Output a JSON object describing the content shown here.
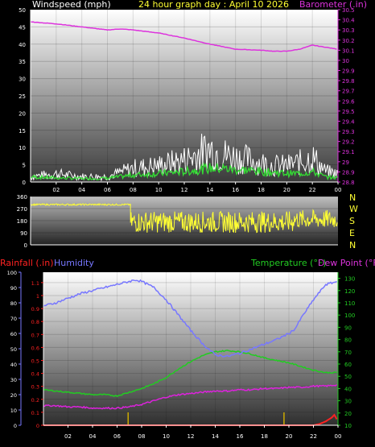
{
  "header": {
    "left_title": "Windspeed (mph)",
    "center_title": "24 hour graph day : April 10 2026",
    "right_title": "Barometer (.in)"
  },
  "colors": {
    "windspeed_avg": "#33dd33",
    "windspeed_gust": "#ffffff",
    "barometer": "#dd33dd",
    "direction": "#ffff33",
    "humidity": "#7777ff",
    "rainfall": "#ff2222",
    "temperature": "#22cc22",
    "dewpoint": "#dd22dd",
    "rain_marks": "#ccaa00"
  },
  "labels": {
    "rainfall": "Rainfall (.in)",
    "humidity": "Humidity",
    "temperature": "Temperature (°F)",
    "dewpoint": "Dew Point (°F)",
    "directions": [
      "N",
      "W",
      "S",
      "E",
      "N"
    ]
  },
  "chart_data": [
    {
      "type": "line",
      "name": "wind-barometer",
      "x_ticks": [
        "02",
        "04",
        "06",
        "08",
        "10",
        "12",
        "14",
        "16",
        "18",
        "20",
        "22",
        "00"
      ],
      "left_axis": {
        "title": "Windspeed (mph)",
        "ticks": [
          0,
          5,
          10,
          15,
          20,
          25,
          30,
          35,
          40,
          45,
          50
        ],
        "ylim": [
          0,
          50
        ]
      },
      "right_axis": {
        "title": "Barometer (.in)",
        "ticks": [
          "28.8",
          "28.9",
          "29",
          "29.1",
          "29.2",
          "29.3",
          "29.4",
          "29.5",
          "29.6",
          "29.7",
          "29.8",
          "29.9",
          "30",
          "30.1",
          "30.2",
          "30.3",
          "30.4",
          "30.5"
        ],
        "ylim": [
          28.8,
          30.5
        ]
      },
      "series": [
        {
          "name": "Barometer (.in)",
          "axis": "right",
          "x": [
            0,
            2,
            4,
            6,
            7,
            8,
            10,
            12,
            14,
            16,
            18,
            19,
            20,
            21,
            22,
            23,
            24
          ],
          "values": [
            30.38,
            30.36,
            30.33,
            30.3,
            30.31,
            30.3,
            30.27,
            30.22,
            30.16,
            30.11,
            30.1,
            30.09,
            30.09,
            30.11,
            30.15,
            30.13,
            30.11
          ]
        },
        {
          "name": "Windspeed (mph)",
          "axis": "left",
          "x": [
            0,
            2,
            4,
            6,
            8,
            10,
            12,
            13,
            14,
            15,
            16,
            17,
            18,
            19,
            20,
            21,
            22,
            23,
            24
          ],
          "values": [
            1.5,
            1.2,
            1.0,
            1.1,
            2.0,
            2.5,
            3.0,
            3.5,
            4.0,
            4.0,
            3.5,
            3.5,
            3.0,
            2.8,
            2.5,
            2.5,
            3.0,
            1.5,
            1.2
          ]
        },
        {
          "name": "Wind gust (mph)",
          "axis": "left",
          "x": [
            0,
            2,
            4,
            6,
            8,
            10,
            12,
            13,
            14,
            15,
            16,
            17,
            18,
            19,
            20,
            21,
            22,
            23,
            24
          ],
          "values": [
            2,
            3,
            2,
            2,
            5,
            6,
            8,
            10,
            12,
            10,
            9,
            8,
            7,
            6,
            6,
            7,
            9,
            4,
            3
          ]
        }
      ]
    },
    {
      "type": "scatter",
      "name": "wind-direction",
      "x_ticks": [
        "02",
        "04",
        "06",
        "08",
        "10",
        "12",
        "14",
        "16",
        "18",
        "20",
        "22",
        "00"
      ],
      "y_ticks": [
        0,
        90,
        180,
        270,
        360
      ],
      "ylim": [
        0,
        360
      ],
      "segments": [
        {
          "x_from": 0,
          "x_to": 7.8,
          "value": 300
        },
        {
          "x_from": 7.8,
          "x_to": 20.5,
          "value": 170,
          "spread": 80
        },
        {
          "x_from": 20.5,
          "x_to": 24,
          "value": 190,
          "spread": 70
        }
      ]
    },
    {
      "type": "line",
      "name": "climate",
      "x_ticks": [
        "02",
        "04",
        "06",
        "08",
        "10",
        "12",
        "14",
        "16",
        "18",
        "20",
        "22",
        "00"
      ],
      "humidity_axis": {
        "title": "Humidity",
        "ticks": [
          0,
          10,
          20,
          30,
          40,
          50,
          60,
          70,
          80,
          90,
          100
        ],
        "ylim": [
          0,
          100
        ]
      },
      "rain_axis": {
        "title": "Rainfall (.in)",
        "ticks": [
          "0",
          "0.1",
          "0.2",
          "0.3",
          "0.4",
          "0.5",
          "0.6",
          "0.7",
          "0.8",
          "0.9",
          "1",
          "1.1"
        ],
        "ylim": [
          0,
          1.18
        ]
      },
      "temp_axis": {
        "title": "Temperature (°F)",
        "ticks": [
          10,
          20,
          30,
          40,
          50,
          60,
          70,
          80,
          90,
          100,
          110,
          120,
          130
        ],
        "ylim": [
          10,
          135
        ]
      },
      "series": [
        {
          "name": "Humidity",
          "axis": "humidity",
          "x": [
            0,
            1,
            2,
            3,
            4,
            5,
            6,
            7,
            7.5,
            8,
            9,
            10,
            11,
            12,
            13,
            14,
            15,
            16,
            17,
            18,
            19,
            20,
            20.5,
            21,
            22,
            23,
            24
          ],
          "values": [
            78,
            80,
            83,
            86,
            88,
            90,
            92,
            94,
            95,
            94,
            90,
            82,
            72,
            62,
            53,
            46,
            45,
            47,
            50,
            53,
            56,
            60,
            63,
            70,
            82,
            92,
            94
          ]
        },
        {
          "name": "Temperature (°F)",
          "axis": "temp",
          "x": [
            0,
            1,
            2,
            3,
            4,
            5,
            6,
            7,
            8,
            9,
            10,
            11,
            12,
            13,
            14,
            15,
            16,
            17,
            18,
            19,
            20,
            21,
            22,
            23,
            24
          ],
          "values": [
            39,
            38,
            37,
            36,
            35,
            35,
            34,
            37,
            40,
            44,
            49,
            56,
            62,
            67,
            70,
            71,
            70,
            68,
            65,
            63,
            61,
            58,
            55,
            53,
            53
          ]
        },
        {
          "name": "Dew Point (°F)",
          "axis": "temp",
          "x": [
            0,
            1,
            2,
            3,
            4,
            5,
            6,
            7,
            8,
            9,
            10,
            11,
            12,
            13,
            14,
            15,
            16,
            17,
            18,
            19,
            20,
            21,
            22,
            23,
            24
          ],
          "values": [
            26,
            26,
            25,
            25,
            24,
            24,
            24,
            25,
            27,
            30,
            33,
            35,
            36,
            37,
            38,
            38,
            39,
            39,
            40,
            40,
            41,
            41,
            42,
            42,
            43
          ]
        },
        {
          "name": "Rainfall (.in)",
          "axis": "rain",
          "x": [
            0,
            22,
            22.5,
            23,
            23.5,
            23.7,
            24
          ],
          "values": [
            0,
            0,
            0.01,
            0.03,
            0.06,
            0.08,
            0.03
          ]
        }
      ],
      "rain_marks_x": [
        6.9,
        19.6
      ]
    }
  ]
}
